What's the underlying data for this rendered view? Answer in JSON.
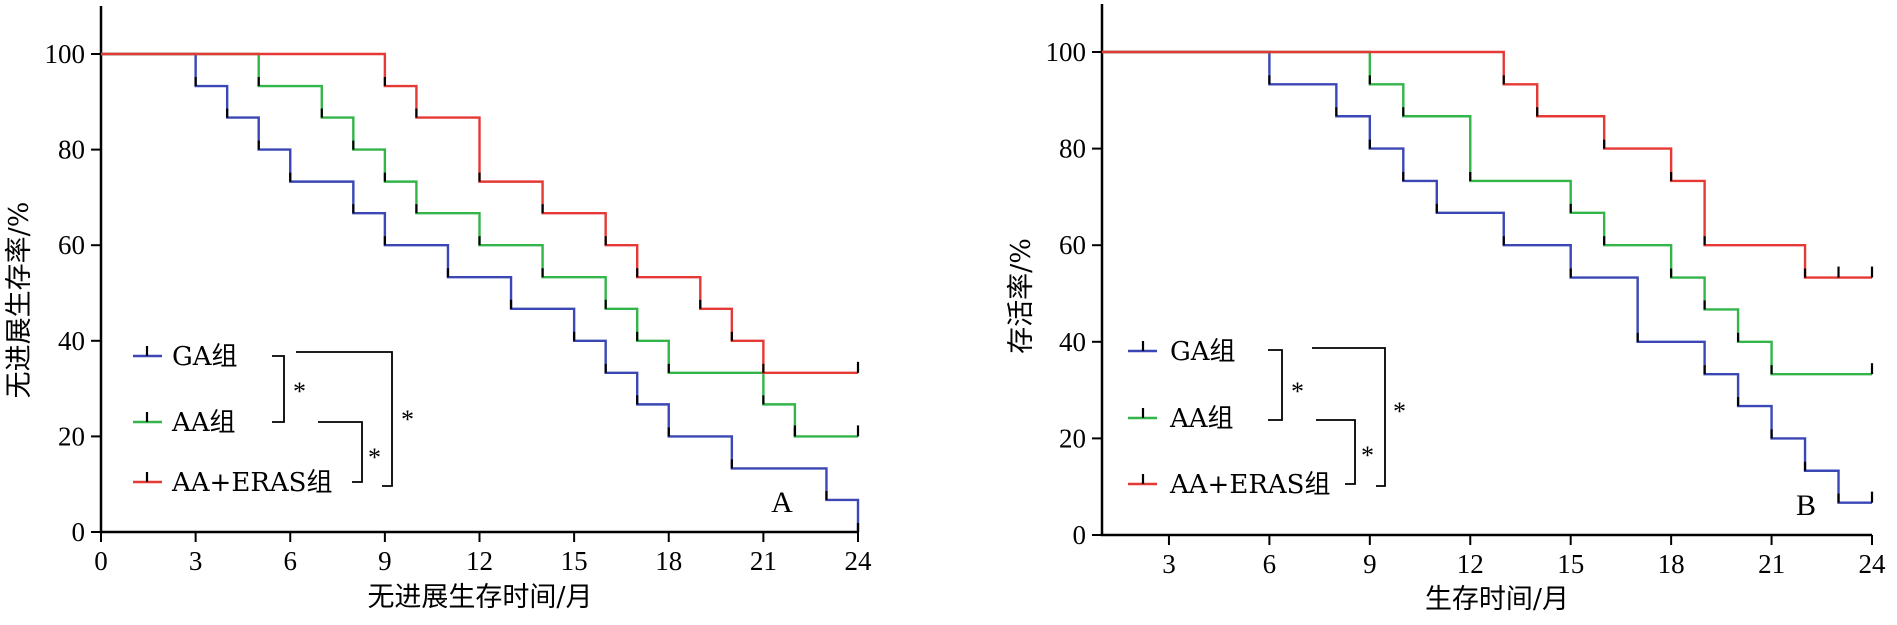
{
  "chart_data": [
    {
      "type": "line",
      "panel_label": "A",
      "xlabel": "无进展生存时间/月",
      "ylabel": "无进展生存率/%",
      "xlim": [
        0,
        24
      ],
      "ylim": [
        0,
        100
      ],
      "xticks": [
        "0",
        "3",
        "6",
        "9",
        "12",
        "15",
        "18",
        "21",
        "24"
      ],
      "yticks": [
        "0",
        "20",
        "40",
        "60",
        "80",
        "100"
      ],
      "series": [
        {
          "name": "GA组",
          "color": "#3b47b5",
          "steps": [
            [
              0,
              100
            ],
            [
              3,
              93.3
            ],
            [
              4,
              86.7
            ],
            [
              5,
              80
            ],
            [
              6,
              73.3
            ],
            [
              8,
              66.7
            ],
            [
              9,
              60
            ],
            [
              11,
              53.3
            ],
            [
              13,
              46.7
            ],
            [
              15,
              40
            ],
            [
              16,
              33.3
            ],
            [
              17,
              26.7
            ],
            [
              18,
              20
            ],
            [
              20,
              13.3
            ],
            [
              23,
              6.7
            ],
            [
              24,
              0
            ]
          ],
          "censored": []
        },
        {
          "name": "AA组",
          "color": "#33b54a",
          "steps": [
            [
              0,
              100
            ],
            [
              5,
              93.3
            ],
            [
              7,
              86.7
            ],
            [
              8,
              80
            ],
            [
              9,
              73.3
            ],
            [
              10,
              66.7
            ],
            [
              12,
              60
            ],
            [
              14,
              53.3
            ],
            [
              16,
              46.7
            ],
            [
              17,
              40
            ],
            [
              18,
              33.3
            ],
            [
              21,
              26.7
            ],
            [
              22,
              20
            ],
            [
              24,
              20
            ]
          ],
          "censored": [
            [
              22,
              20
            ],
            [
              24,
              20
            ]
          ]
        },
        {
          "name": "AA+ERAS组",
          "color": "#e53935",
          "steps": [
            [
              0,
              100
            ],
            [
              9,
              93.3
            ],
            [
              10,
              86.7
            ],
            [
              12,
              73.3
            ],
            [
              14,
              66.7
            ],
            [
              16,
              60
            ],
            [
              17,
              53.3
            ],
            [
              19,
              46.7
            ],
            [
              20,
              40
            ],
            [
              21,
              33.3
            ],
            [
              24,
              33.3
            ]
          ],
          "censored": [
            [
              24,
              33.3
            ]
          ]
        }
      ],
      "significance": [
        "*",
        "*",
        "*"
      ]
    },
    {
      "type": "line",
      "panel_label": "B",
      "xlabel": "生存时间/月",
      "ylabel": "存活率/%",
      "xlim": [
        1,
        24
      ],
      "ylim": [
        0,
        100
      ],
      "xticks": [
        "3",
        "6",
        "9",
        "12",
        "15",
        "18",
        "21",
        "24"
      ],
      "yticks": [
        "0",
        "20",
        "40",
        "60",
        "80",
        "100"
      ],
      "series": [
        {
          "name": "GA组",
          "color": "#3b47b5",
          "steps": [
            [
              1,
              100
            ],
            [
              6,
              93.3
            ],
            [
              8,
              86.7
            ],
            [
              9,
              80
            ],
            [
              10,
              73.3
            ],
            [
              11,
              66.7
            ],
            [
              13,
              60
            ],
            [
              15,
              53.3
            ],
            [
              17,
              40
            ],
            [
              19,
              33.3
            ],
            [
              20,
              26.7
            ],
            [
              21,
              20
            ],
            [
              22,
              13.3
            ],
            [
              23,
              6.7
            ],
            [
              24,
              6.7
            ]
          ],
          "censored": [
            [
              24,
              6.7
            ]
          ]
        },
        {
          "name": "AA组",
          "color": "#33b54a",
          "steps": [
            [
              1,
              100
            ],
            [
              9,
              93.3
            ],
            [
              10,
              86.7
            ],
            [
              12,
              73.3
            ],
            [
              15,
              66.7
            ],
            [
              16,
              60
            ],
            [
              18,
              53.3
            ],
            [
              19,
              46.7
            ],
            [
              20,
              40
            ],
            [
              21,
              33.3
            ],
            [
              24,
              33.3
            ]
          ],
          "censored": [
            [
              24,
              33.3
            ]
          ]
        },
        {
          "name": "AA+ERAS组",
          "color": "#e53935",
          "steps": [
            [
              1,
              100
            ],
            [
              13,
              93.3
            ],
            [
              14,
              86.7
            ],
            [
              16,
              80
            ],
            [
              18,
              73.3
            ],
            [
              19,
              60
            ],
            [
              22,
              53.3
            ],
            [
              24,
              53.3
            ]
          ],
          "censored": [
            [
              23,
              53.3
            ],
            [
              24,
              53.3
            ]
          ]
        }
      ],
      "significance": [
        "*",
        "*",
        "*"
      ]
    }
  ]
}
